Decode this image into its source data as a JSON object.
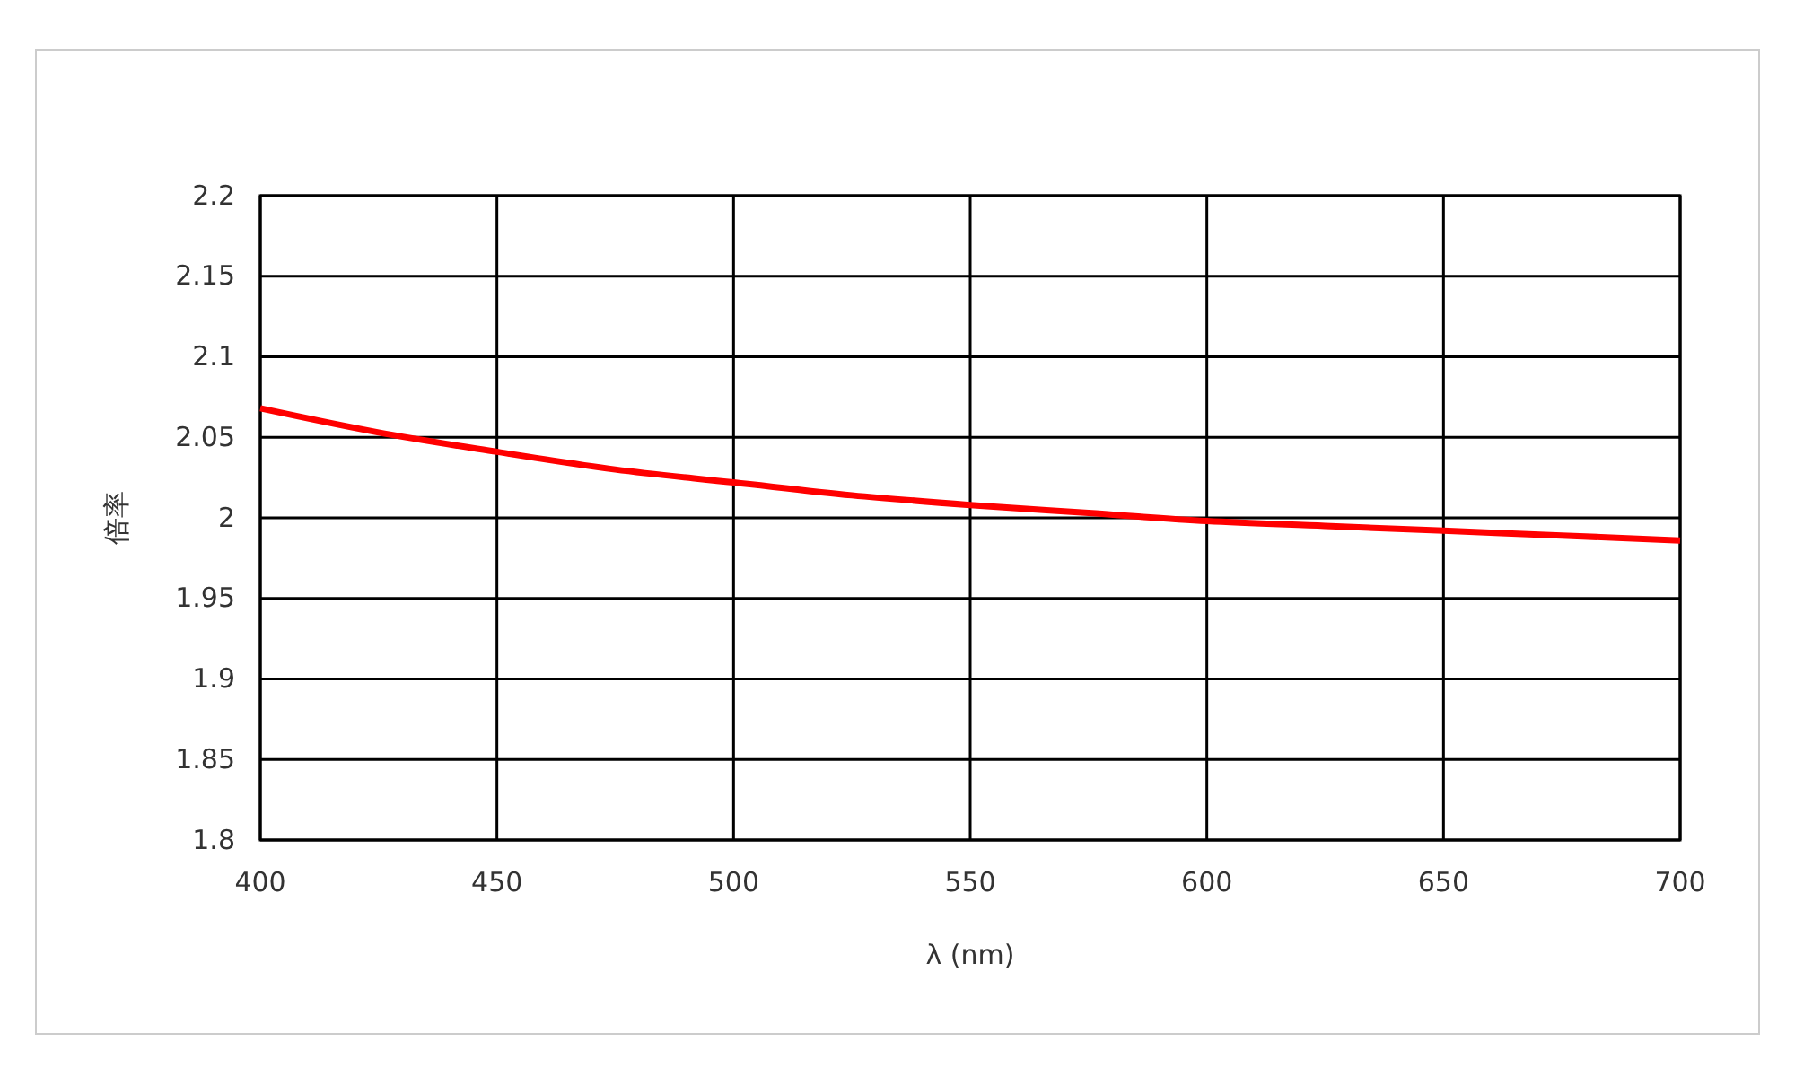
{
  "chart_data": {
    "type": "line",
    "xlabel": "λ (nm)",
    "ylabel": "倍率",
    "x": [
      400,
      425,
      450,
      475,
      500,
      525,
      550,
      575,
      600,
      625,
      650,
      675,
      700
    ],
    "series": [
      {
        "color": "#ff0000",
        "values": [
          2.068,
          2.053,
          2.041,
          2.03,
          2.022,
          2.014,
          2.008,
          2.003,
          1.998,
          1.995,
          1.992,
          1.989,
          1.986
        ]
      }
    ],
    "xlim": [
      400,
      700
    ],
    "xticks": [
      400,
      450,
      500,
      550,
      600,
      650,
      700
    ],
    "ylim": [
      1.8,
      2.2
    ],
    "yticks": [
      1.8,
      1.85,
      1.9,
      1.95,
      2,
      2.05,
      2.1,
      2.15,
      2.2
    ],
    "grid": true,
    "marker": "none",
    "line_style": "solid"
  }
}
